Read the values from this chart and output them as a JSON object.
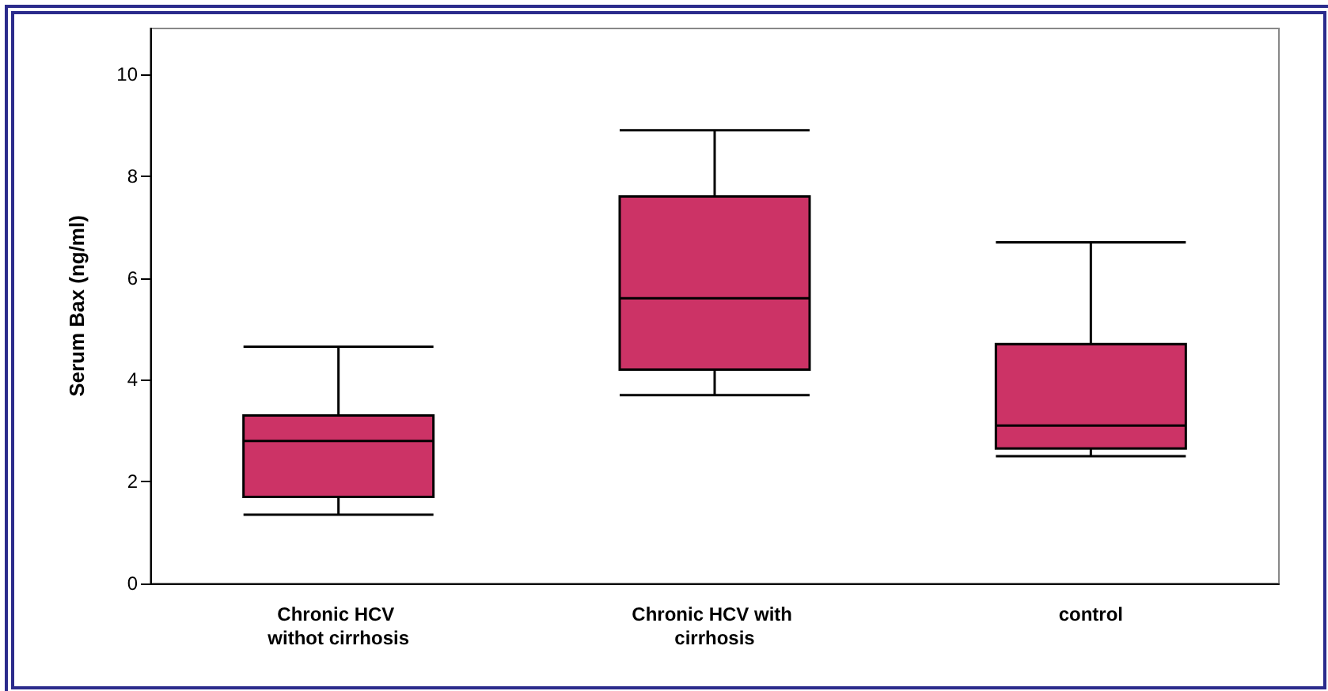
{
  "chart_data": {
    "type": "box",
    "ylabel": "Serum Bax (ng/ml)",
    "categories": [
      "Chronic HCV withot cirrhosis",
      "Chronic HCV with cirrhosis",
      "control"
    ],
    "color": "#cc3366",
    "boxes": [
      {
        "low": 1.35,
        "q1": 1.7,
        "median": 2.8,
        "q3": 3.3,
        "high": 4.65
      },
      {
        "low": 3.7,
        "q1": 4.2,
        "median": 5.6,
        "q3": 7.6,
        "high": 8.9
      },
      {
        "low": 2.5,
        "q1": 2.65,
        "median": 3.1,
        "q3": 4.7,
        "high": 6.7
      }
    ],
    "ylim": [
      0,
      10.9
    ],
    "yticks": [
      0,
      2,
      4,
      6,
      8,
      10
    ],
    "grid": false
  }
}
